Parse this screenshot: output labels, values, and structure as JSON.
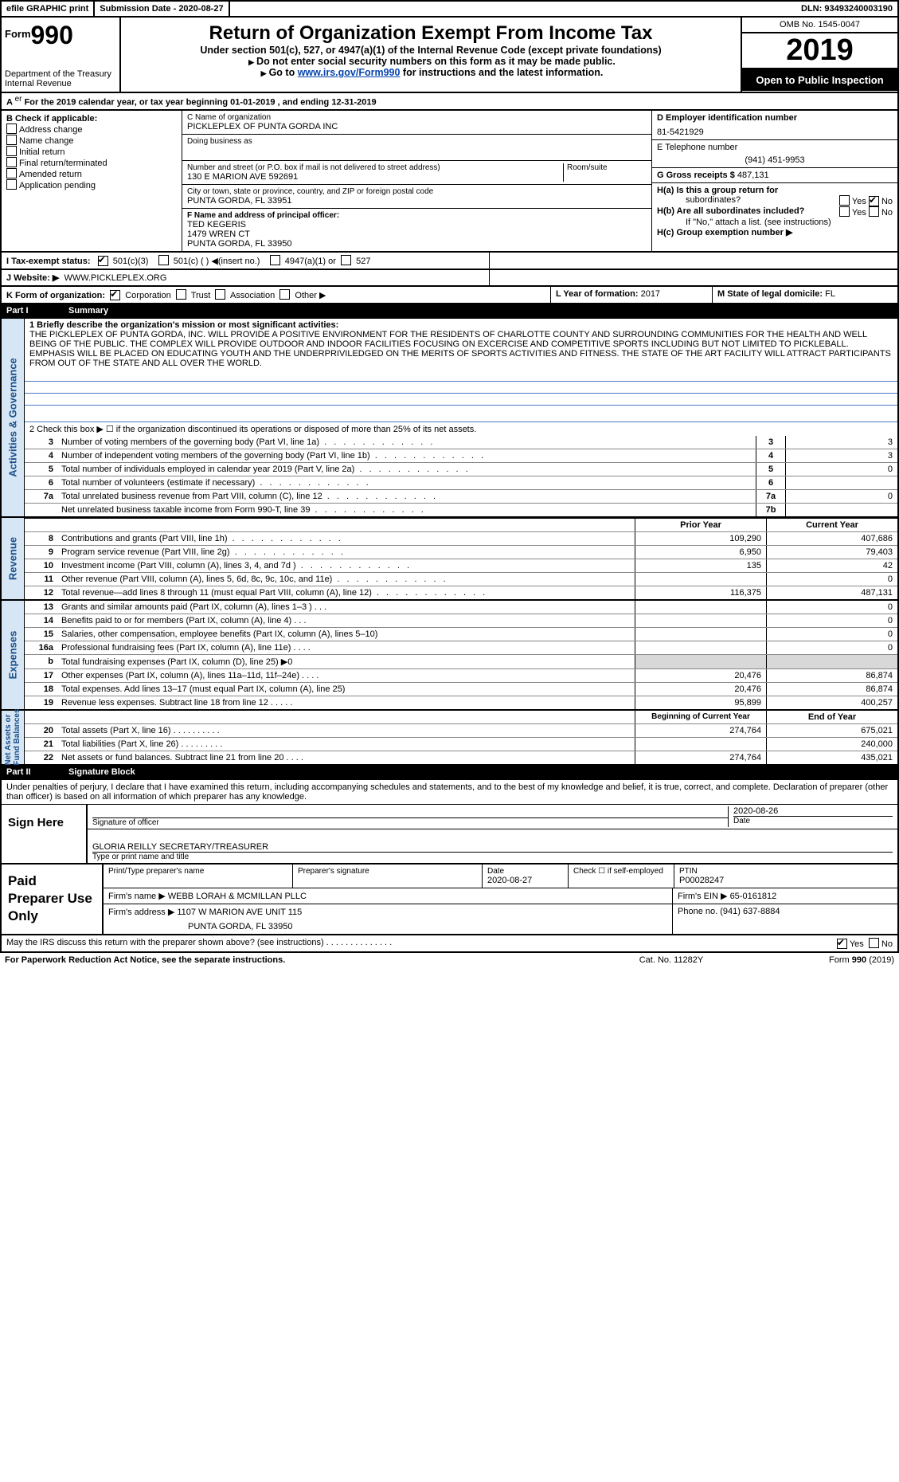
{
  "topbar": {
    "efile": "efile GRAPHIC print",
    "submission": "Submission Date - 2020-08-27",
    "dln": "DLN: 93493240003190"
  },
  "header": {
    "form_word": "Form",
    "form_num": "990",
    "dept": "Department of the Treasury\nInternal Revenue",
    "title": "Return of Organization Exempt From Income Tax",
    "sub1": "Under section 501(c), 527, or 4947(a)(1) of the Internal Revenue Code (except private foundations)",
    "sub2": "Do not enter social security numbers on this form as it may be made public.",
    "sub3_pre": "Go to ",
    "sub3_link": "www.irs.gov/Form990",
    "sub3_post": " for instructions and the latest information.",
    "omb": "OMB No. 1545-0047",
    "year": "2019",
    "open": "Open to Public Inspection"
  },
  "rowA": "For the 2019 calendar year, or tax year beginning 01-01-2019   , and ending 12-31-2019",
  "boxB": {
    "title": "B Check if applicable:",
    "opts": [
      "Address change",
      "Name change",
      "Initial return",
      "Final return/terminated",
      "Amended return",
      "Application pending"
    ]
  },
  "boxC": {
    "name_lbl": "C Name of organization",
    "name": "PICKLEPLEX OF PUNTA GORDA INC",
    "dba_lbl": "Doing business as",
    "addr_lbl": "Number and street (or P.O. box if mail is not delivered to street address)",
    "room_lbl": "Room/suite",
    "addr": "130 E MARION AVE 592691",
    "city_lbl": "City or town, state or province, country, and ZIP or foreign postal code",
    "city": "PUNTA GORDA, FL  33951",
    "officer_lbl": "F  Name and address of principal officer:",
    "officer": "TED KEGERIS\n1479 WREN CT\nPUNTA GORDA, FL  33950"
  },
  "boxD": {
    "lbl": "D Employer identification number",
    "val": "81-5421929"
  },
  "boxE": {
    "lbl": "E Telephone number",
    "val": "(941) 451-9953"
  },
  "boxG": {
    "lbl": "G Gross receipts $",
    "val": "487,131"
  },
  "boxH": {
    "a": "H(a)  Is this a group return for",
    "a2": "subordinates?",
    "b": "H(b)  Are all subordinates included?",
    "b2": "If \"No,\" attach a list. (see instructions)",
    "c": "H(c)  Group exemption number ▶",
    "yes": "Yes",
    "no": "No"
  },
  "rowI": {
    "lbl": "I    Tax-exempt status:",
    "o1": "501(c)(3)",
    "o2": "501(c) (  ) ◀(insert no.)",
    "o3": "4947(a)(1) or",
    "o4": "527"
  },
  "rowJ": {
    "lbl": "J   Website: ▶",
    "val": "WWW.PICKLEPLEX.ORG"
  },
  "rowK": {
    "lbl": "K Form of organization:",
    "o1": "Corporation",
    "o2": "Trust",
    "o3": "Association",
    "o4": "Other ▶",
    "l_lbl": "L Year of formation:",
    "l_val": "2017",
    "m_lbl": "M State of legal domicile:",
    "m_val": "FL"
  },
  "part1": {
    "pt": "Part I",
    "title": "Summary"
  },
  "summary": {
    "l1_lbl": "1   Briefly describe the organization's mission or most significant activities:",
    "mission": "THE PICKLEPLEX OF PUNTA GORDA, INC. WILL PROVIDE A POSITIVE ENVIRONMENT FOR THE RESIDENTS OF CHARLOTTE COUNTY AND SURROUNDING COMMUNITIES FOR THE HEALTH AND WELL BEING OF THE PUBLIC. THE COMPLEX WILL PROVIDE OUTDOOR AND INDOOR FACILITIES FOCUSING ON EXCERCISE AND COMPETITIVE SPORTS INCLUDING BUT NOT LIMITED TO PICKLEBALL. EMPHASIS WILL BE PLACED ON EDUCATING YOUTH AND THE UNDERPRIVILEDGED ON THE MERITS OF SPORTS ACTIVITIES AND FITNESS. THE STATE OF THE ART FACILITY WILL ATTRACT PARTICIPANTS FROM OUT OF THE STATE AND ALL OVER THE WORLD.",
    "l2": "2   Check this box ▶ ☐ if the organization discontinued its operations or disposed of more than 25% of its net assets.",
    "rows": [
      {
        "n": "3",
        "t": "Number of voting members of the governing body (Part VI, line 1a)",
        "box": "3",
        "v": "3"
      },
      {
        "n": "4",
        "t": "Number of independent voting members of the governing body (Part VI, line 1b)",
        "box": "4",
        "v": "3"
      },
      {
        "n": "5",
        "t": "Total number of individuals employed in calendar year 2019 (Part V, line 2a)",
        "box": "5",
        "v": "0"
      },
      {
        "n": "6",
        "t": "Total number of volunteers (estimate if necessary)",
        "box": "6",
        "v": ""
      },
      {
        "n": "7a",
        "t": "Total unrelated business revenue from Part VIII, column (C), line 12",
        "box": "7a",
        "v": "0"
      },
      {
        "n": "",
        "t": "Net unrelated business taxable income from Form 990-T, line 39",
        "box": "7b",
        "v": ""
      }
    ],
    "vlabel": "Activities & Governance"
  },
  "revenue": {
    "vlabel": "Revenue",
    "hdr_prior": "Prior Year",
    "hdr_curr": "Current Year",
    "rows": [
      {
        "n": "8",
        "t": "Contributions and grants (Part VIII, line 1h)",
        "p": "109,290",
        "c": "407,686"
      },
      {
        "n": "9",
        "t": "Program service revenue (Part VIII, line 2g)",
        "p": "6,950",
        "c": "79,403"
      },
      {
        "n": "10",
        "t": "Investment income (Part VIII, column (A), lines 3, 4, and 7d )",
        "p": "135",
        "c": "42"
      },
      {
        "n": "11",
        "t": "Other revenue (Part VIII, column (A), lines 5, 6d, 8c, 9c, 10c, and 11e)",
        "p": "",
        "c": "0"
      },
      {
        "n": "12",
        "t": "Total revenue—add lines 8 through 11 (must equal Part VIII, column (A), line 12)",
        "p": "116,375",
        "c": "487,131"
      }
    ]
  },
  "expenses": {
    "vlabel": "Expenses",
    "rows": [
      {
        "n": "13",
        "t": "Grants and similar amounts paid (Part IX, column (A), lines 1–3 )   .   .   .",
        "p": "",
        "c": "0"
      },
      {
        "n": "14",
        "t": "Benefits paid to or for members (Part IX, column (A), line 4)   .   .   .",
        "p": "",
        "c": "0"
      },
      {
        "n": "15",
        "t": "Salaries, other compensation, employee benefits (Part IX, column (A), lines 5–10)",
        "p": "",
        "c": "0"
      },
      {
        "n": "16a",
        "t": "Professional fundraising fees (Part IX, column (A), line 11e)   .   .   .   .",
        "p": "",
        "c": "0"
      },
      {
        "n": "b",
        "t": "Total fundraising expenses (Part IX, column (D), line 25) ▶0",
        "p": "SHADE",
        "c": "SHADE"
      },
      {
        "n": "17",
        "t": "Other expenses (Part IX, column (A), lines 11a–11d, 11f–24e)   .   .   .   .",
        "p": "20,476",
        "c": "86,874"
      },
      {
        "n": "18",
        "t": "Total expenses. Add lines 13–17 (must equal Part IX, column (A), line 25)",
        "p": "20,476",
        "c": "86,874"
      },
      {
        "n": "19",
        "t": "Revenue less expenses. Subtract line 18 from line 12   .   .   .   .   .",
        "p": "95,899",
        "c": "400,257"
      }
    ]
  },
  "netassets": {
    "vlabel": "Net Assets or\nFund Balances",
    "hdr_beg": "Beginning of Current Year",
    "hdr_end": "End of Year",
    "rows": [
      {
        "n": "20",
        "t": "Total assets (Part X, line 16)   .   .   .   .   .   .   .   .   .   .",
        "p": "274,764",
        "c": "675,021"
      },
      {
        "n": "21",
        "t": "Total liabilities (Part X, line 26)   .   .   .   .   .   .   .   .   .",
        "p": "",
        "c": "240,000"
      },
      {
        "n": "22",
        "t": "Net assets or fund balances. Subtract line 21 from line 20   .   .   .   .",
        "p": "274,764",
        "c": "435,021"
      }
    ]
  },
  "part2": {
    "pt": "Part II",
    "title": "Signature Block"
  },
  "sig": {
    "intro": "Under penalties of perjury, I declare that I have examined this return, including accompanying schedules and statements, and to the best of my knowledge and belief, it is true, correct, and complete. Declaration of preparer (other than officer) is based on all information of which preparer has any knowledge.",
    "sign_here": "Sign Here",
    "sig_officer": "Signature of officer",
    "date": "2020-08-26",
    "date_lbl": "Date",
    "name": "GLORIA REILLY SECRETARY/TREASURER",
    "name_lbl": "Type or print name and title"
  },
  "paid": {
    "lbl": "Paid Preparer Use Only",
    "h1": "Print/Type preparer's name",
    "h2": "Preparer's signature",
    "h3": "Date",
    "h3v": "2020-08-27",
    "h4": "Check ☐ if self-employed",
    "h5": "PTIN",
    "h5v": "P00028247",
    "firm_lbl": "Firm's name    ▶",
    "firm": "WEBB LORAH & MCMILLAN PLLC",
    "ein_lbl": "Firm's EIN ▶",
    "ein": "65-0161812",
    "addr_lbl": "Firm's address ▶",
    "addr": "1107 W MARION AVE UNIT 115",
    "addr2": "PUNTA GORDA, FL  33950",
    "phone_lbl": "Phone no.",
    "phone": "(941) 637-8884"
  },
  "footer": {
    "discuss": "May the IRS discuss this return with the preparer shown above? (see instructions)   .   .   .   .   .   .   .   .   .   .   .   .   .   .",
    "yes": "Yes",
    "no": "No",
    "paperwork": "For Paperwork Reduction Act Notice, see the separate instructions.",
    "cat": "Cat. No. 11282Y",
    "form": "Form 990 (2019)"
  }
}
